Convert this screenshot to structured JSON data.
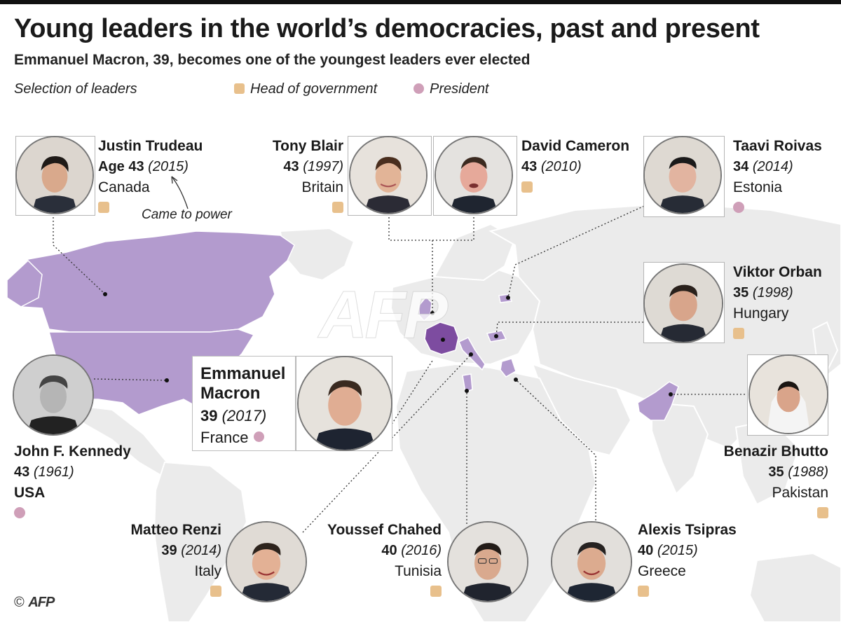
{
  "header": {
    "title": "Young leaders in the world’s democracies, past and present",
    "subtitle": "Emmanuel Macron, 39, becomes one of the youngest leaders ever elected"
  },
  "legend": {
    "label": "Selection of leaders",
    "items": [
      {
        "label": "Head of government",
        "shape": "square",
        "color": "#e8c08c"
      },
      {
        "label": "President",
        "shape": "circle",
        "color": "#cf9fb8"
      }
    ]
  },
  "colors": {
    "map_land": "#ebebeb",
    "highlight_country": "#b39bce",
    "featured_country": "#7d4ca0",
    "head_of_government": "#e8c08c",
    "president": "#cf9fb8"
  },
  "annotation": "Came to power",
  "featured": {
    "name": "Emmanuel Macron",
    "name_line1": "Emmanuel",
    "name_line2": "Macron",
    "age": "39",
    "year": "(2017)",
    "country": "France",
    "role": "president"
  },
  "leaders": [
    {
      "id": "trudeau",
      "name": "Justin Trudeau",
      "age": "Age 43",
      "year": "(2015)",
      "country": "Canada",
      "role": "head-of-government"
    },
    {
      "id": "blair",
      "name": "Tony Blair",
      "age": "43",
      "year": "(1997)",
      "country": "Britain",
      "role": "head-of-government"
    },
    {
      "id": "cameron",
      "name": "David Cameron",
      "age": "43",
      "year": "(2010)",
      "country": "",
      "role": "head-of-government"
    },
    {
      "id": "roivas",
      "name": "Taavi Roivas",
      "age": "34",
      "year": "(2014)",
      "country": "Estonia",
      "role": "president"
    },
    {
      "id": "orban",
      "name": "Viktor Orban",
      "age": "35",
      "year": "(1998)",
      "country": "Hungary",
      "role": "head-of-government"
    },
    {
      "id": "kennedy",
      "name": "John F. Kennedy",
      "age": "43",
      "year": "(1961)",
      "country": "USA",
      "role": "president"
    },
    {
      "id": "bhutto",
      "name": "Benazir Bhutto",
      "age": "35",
      "year": "(1988)",
      "country": "Pakistan",
      "role": "head-of-government"
    },
    {
      "id": "renzi",
      "name": "Matteo Renzi",
      "age": "39",
      "year": "(2014)",
      "country": "Italy",
      "role": "head-of-government"
    },
    {
      "id": "chahed",
      "name": "Youssef Chahed",
      "age": "40",
      "year": "(2016)",
      "country": "Tunisia",
      "role": "head-of-government"
    },
    {
      "id": "tsipras",
      "name": "Alexis Tsipras",
      "age": "40",
      "year": "(2015)",
      "country": "Greece",
      "role": "head-of-government"
    }
  ],
  "footer": {
    "copyright": "©",
    "agency": "AFP"
  },
  "watermark": "AFP"
}
